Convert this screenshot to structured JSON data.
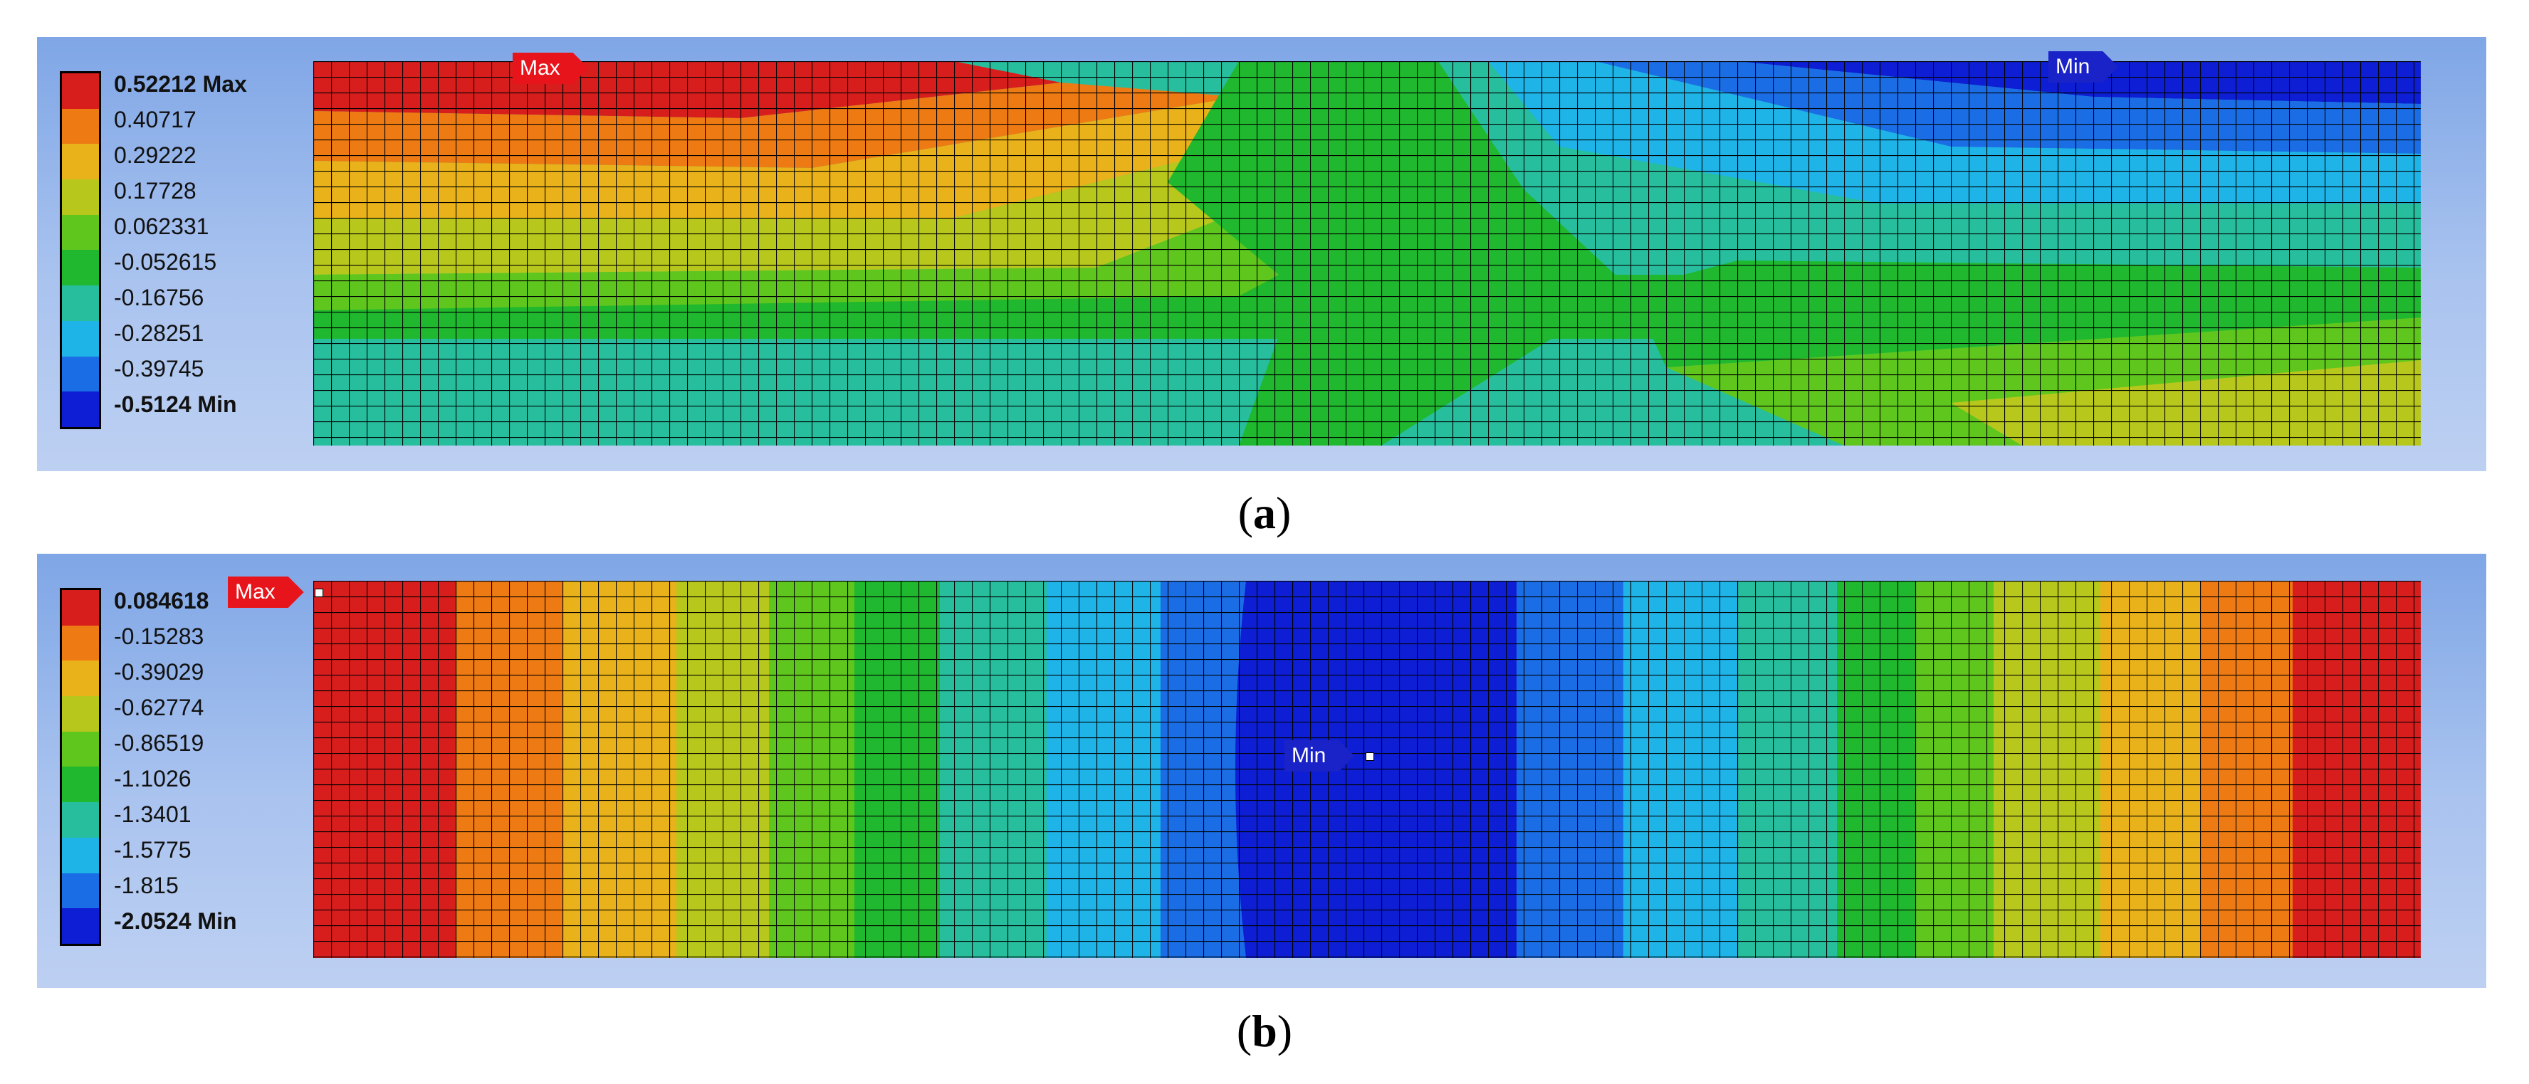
{
  "colors": {
    "scale": [
      "#d81d1d",
      "#e66d16",
      "#ee9e18",
      "#d2c21b",
      "#9fc41f",
      "#22b92a",
      "#29b98f",
      "#2fc8cc",
      "#1c9fe0",
      "#163fd8",
      "#0a1bb0"
    ]
  },
  "panel_a": {
    "legend": {
      "labels": [
        "0.52212 Max",
        "0.40717",
        "0.29222",
        "0.17728",
        "0.062331",
        "-0.052615",
        "-0.16756",
        "-0.28251",
        "-0.39745",
        "-0.5124 Min"
      ],
      "colors": [
        "#d81d1d",
        "#ee7a13",
        "#e9b21a",
        "#b8c71c",
        "#5fc61e",
        "#1fb82e",
        "#27be9e",
        "#1fb4e8",
        "#1b6de6",
        "#0d1ed4"
      ]
    },
    "probe_max": "Max",
    "probe_min": "Min",
    "caption_letter": "a"
  },
  "panel_b": {
    "legend": {
      "labels": [
        "0.084618",
        "-0.15283",
        "-0.39029",
        "-0.62774",
        "-0.86519",
        "-1.1026",
        "-1.3401",
        "-1.5775",
        "-1.815",
        "-2.0524 Min"
      ],
      "colors": [
        "#d81d1d",
        "#ee7a13",
        "#e9b21a",
        "#b8c71c",
        "#5fc61e",
        "#1fb82e",
        "#27be9e",
        "#1fb4e8",
        "#1b6de6",
        "#0d1ed4"
      ]
    },
    "probe_max": "Max",
    "probe_min": "Min",
    "caption_letter": "b"
  }
}
